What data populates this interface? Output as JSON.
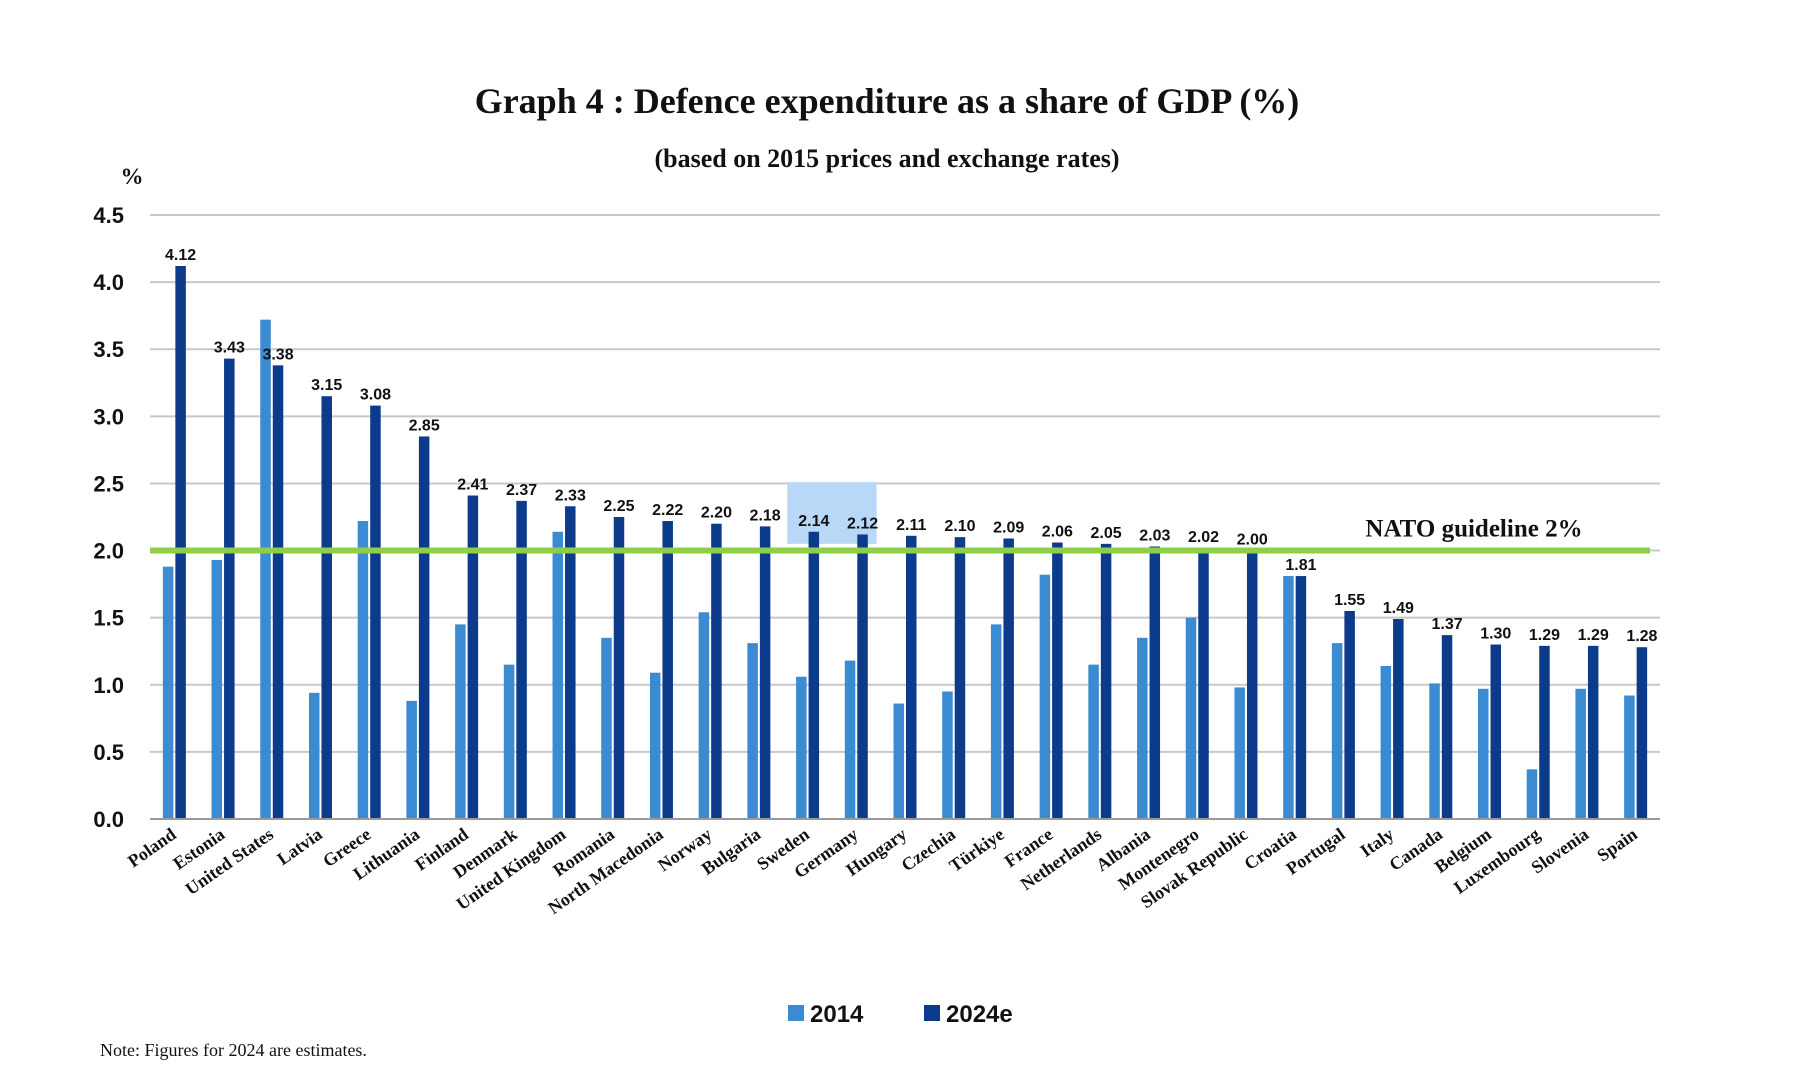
{
  "chart_data": {
    "type": "bar",
    "title": "Graph 4 : Defence expenditure as a share of GDP (%)",
    "subtitle": "(based on 2015 prices and exchange rates)",
    "ylabel": "%",
    "xlabel": "",
    "ylim": [
      0,
      4.5
    ],
    "yticks": [
      "0.0",
      "0.5",
      "1.0",
      "1.5",
      "2.0",
      "2.5",
      "3.0",
      "3.5",
      "4.0",
      "4.5"
    ],
    "grid": true,
    "legend_position": "bottom",
    "categories": [
      "Poland",
      "Estonia",
      "United States",
      "Latvia",
      "Greece",
      "Lithuania",
      "Finland",
      "Denmark",
      "United Kingdom",
      "Romania",
      "North Macedonia",
      "Norway",
      "Bulgaria",
      "Sweden",
      "Germany",
      "Hungary",
      "Czechia",
      "Türkiye",
      "France",
      "Netherlands",
      "Albania",
      "Montenegro",
      "Slovak Republic",
      "Croatia",
      "Portugal",
      "Italy",
      "Canada",
      "Belgium",
      "Luxembourg",
      "Slovenia",
      "Spain"
    ],
    "series": [
      {
        "name": "2014",
        "color": "#3a8bd1",
        "values": [
          1.88,
          1.93,
          3.72,
          0.94,
          2.22,
          0.88,
          1.45,
          1.15,
          2.14,
          1.35,
          1.09,
          1.54,
          1.31,
          1.06,
          1.18,
          0.86,
          0.95,
          1.45,
          1.82,
          1.15,
          1.35,
          1.5,
          0.98,
          1.81,
          1.31,
          1.14,
          1.01,
          0.97,
          0.37,
          0.97,
          0.92
        ]
      },
      {
        "name": "2024e",
        "color": "#0b3b8a",
        "values": [
          4.12,
          3.43,
          3.38,
          3.15,
          3.08,
          2.85,
          2.41,
          2.37,
          2.33,
          2.25,
          2.22,
          2.2,
          2.18,
          2.14,
          2.12,
          2.11,
          2.1,
          2.09,
          2.06,
          2.05,
          2.03,
          2.02,
          2.0,
          1.81,
          1.55,
          1.49,
          1.37,
          1.3,
          1.29,
          1.29,
          1.28
        ],
        "labels": [
          "4.12",
          "3.43",
          "3.38",
          "3.15",
          "3.08",
          "2.85",
          "2.41",
          "2.37",
          "2.33",
          "2.25",
          "2.22",
          "2.20",
          "2.18",
          "2.14",
          "2.12",
          "2.11",
          "2.10",
          "2.09",
          "2.06",
          "2.05",
          "2.03",
          "2.02",
          "2.00",
          "1.81",
          "1.55",
          "1.49",
          "1.37",
          "1.30",
          "1.29",
          "1.29",
          "1.28"
        ]
      }
    ],
    "reference_line": {
      "value": 2.0,
      "label": "NATO guideline 2%",
      "color": "#8fcf48"
    },
    "highlight": {
      "categories": [
        "Sweden",
        "Germany"
      ],
      "color": "#b8d8f8"
    },
    "gridline_color": "#c8c8c8",
    "note": "Note: Figures for 2024 are estimates."
  }
}
